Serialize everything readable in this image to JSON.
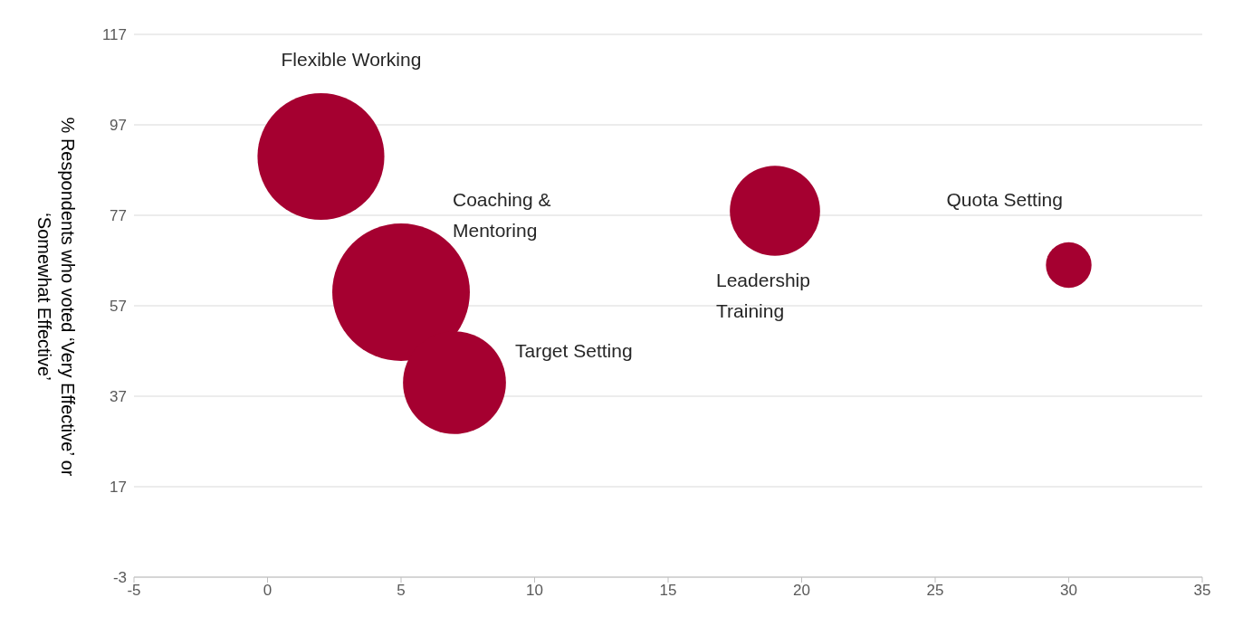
{
  "chart_data": {
    "type": "bubble",
    "ylabel": "% Respondents who voted ‘Very Effective’ or ‘Somewhat Effective’",
    "x": [
      2,
      5,
      7,
      19,
      30
    ],
    "values": [
      90,
      60,
      40,
      78,
      66
    ],
    "sizes": [
      0.85,
      1,
      0.56,
      0.43,
      0.11
    ],
    "color": "#a50030",
    "xlim": [
      -5,
      35
    ],
    "xticks": [
      -5,
      0,
      5,
      10,
      15,
      20,
      25,
      30,
      35
    ],
    "ylim": [
      -3,
      117
    ],
    "yticks": [
      -3,
      17,
      37,
      57,
      77,
      97,
      117
    ],
    "grid": "y",
    "annotations": [
      "Flexible Working",
      "Coaching & Mentoring",
      "Target Setting",
      "Leadership Training",
      "Quota Setting"
    ]
  }
}
